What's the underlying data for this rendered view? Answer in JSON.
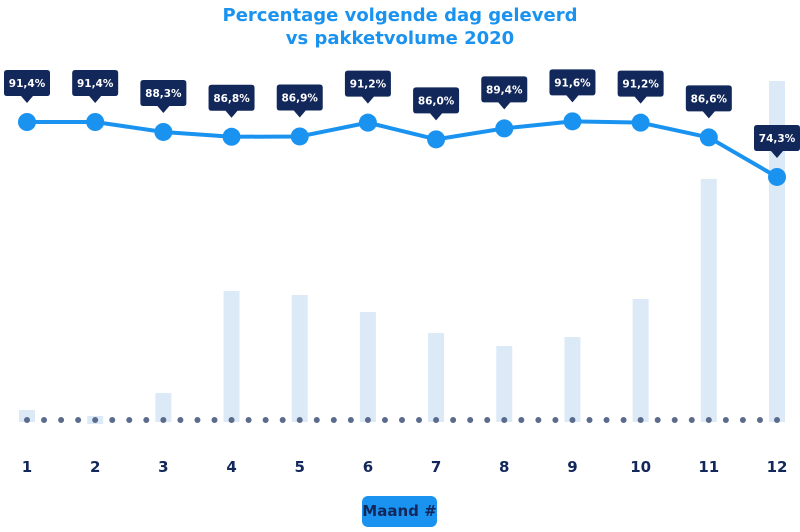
{
  "chart_data": {
    "type": "bar+line",
    "title": [
      "Percentage volgende dag geleverd",
      "vs pakketvolume 2020"
    ],
    "xlabel": "Maand #",
    "categories": [
      "1",
      "2",
      "3",
      "4",
      "5",
      "6",
      "7",
      "8",
      "9",
      "10",
      "11",
      "12"
    ],
    "line_series": {
      "values": [
        91.4,
        91.4,
        88.3,
        86.8,
        86.9,
        91.2,
        86.0,
        89.4,
        91.6,
        91.2,
        86.6,
        74.3
      ],
      "labels": [
        "91,4%",
        "91,4%",
        "88,3%",
        "86,8%",
        "86,9%",
        "91,2%",
        "86,0%",
        "89,4%",
        "91,6%",
        "91,2%",
        "86,6%",
        "74,3%"
      ],
      "color": "#1a93f0"
    },
    "bar_series": {
      "relative_values": [
        10,
        -4,
        27,
        129,
        125,
        108,
        87,
        74,
        83,
        121,
        241,
        339
      ],
      "color": "#dceaf8"
    },
    "y_axis_shown": false,
    "grid": false,
    "label_color": "#12275a"
  }
}
